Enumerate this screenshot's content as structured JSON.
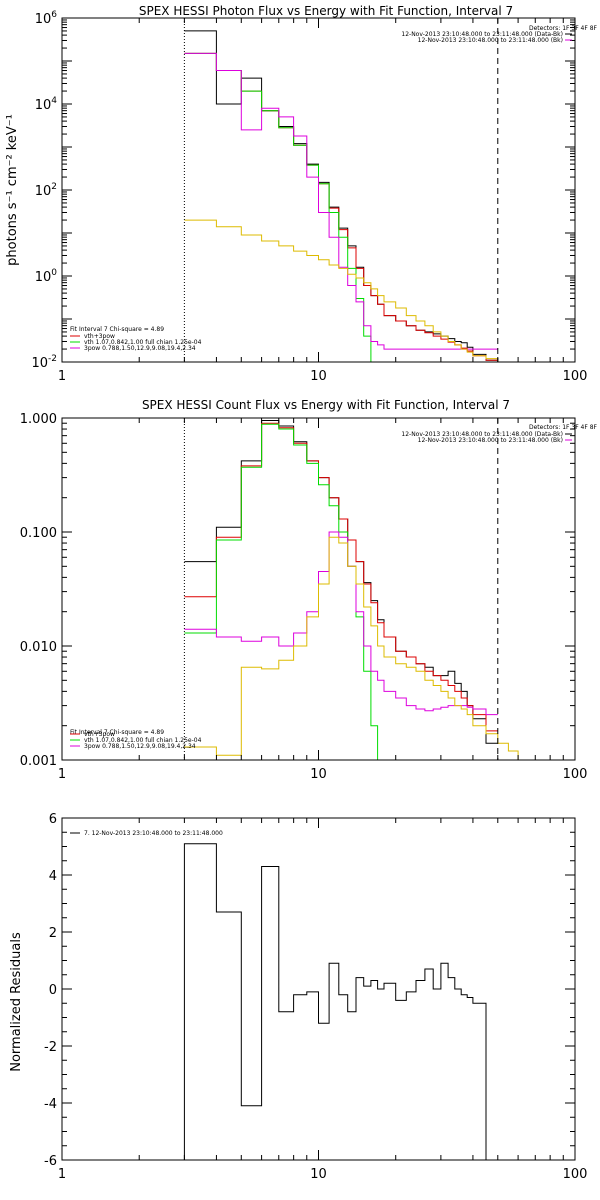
{
  "chart_data": [
    {
      "type": "line",
      "title": "SPEX HESSI Photon Flux vs Energy with Fit Function, Interval 7",
      "ylabel": "photons s⁻¹ cm⁻² keV⁻¹",
      "xlabel": "",
      "xscale": "log",
      "yscale": "log",
      "xlim": [
        1,
        100
      ],
      "ylim": [
        0.01,
        1000000
      ],
      "x_tick_labels": [
        "1",
        "10",
        "100"
      ],
      "y_tick_labels": [
        {
          "base": "10",
          "exp": "6",
          "value": 1000000
        },
        {
          "base": "10",
          "exp": "4",
          "value": 10000
        },
        {
          "base": "10",
          "exp": "2",
          "value": 100
        },
        {
          "base": "10",
          "exp": "0",
          "value": 1
        },
        {
          "base": "10",
          "exp": "-2",
          "value": 0.01
        }
      ],
      "bin_edges": [
        3,
        4,
        5,
        6,
        7,
        8,
        9,
        10,
        11,
        12,
        13,
        14,
        15,
        16,
        17,
        18,
        20,
        22,
        24,
        26,
        28,
        30,
        32,
        34,
        36,
        38,
        40,
        45,
        50,
        55,
        60
      ],
      "series": [
        {
          "name": "",
          "color": "#000000",
          "style": "solid",
          "values": [
            500000,
            10000,
            40000,
            7000,
            3000,
            1200,
            400,
            150,
            40,
            13,
            5,
            1.6,
            0.6,
            0.35,
            0.22,
            0.12,
            0.09,
            0.07,
            0.055,
            0.05,
            0.045,
            0.04,
            0.035,
            0.03,
            0.028,
            0.022,
            0.015,
            0.011,
            null,
            null
          ]
        },
        {
          "name": "vth+3pow",
          "color": "#dd0000",
          "style": "solid",
          "values": [
            150000,
            60000,
            20000,
            7000,
            2800,
            1100,
            380,
            140,
            38,
            12,
            4.5,
            1.5,
            0.6,
            0.35,
            0.22,
            0.12,
            0.09,
            0.07,
            0.055,
            0.048,
            0.04,
            0.034,
            0.029,
            0.025,
            0.021,
            0.018,
            0.014,
            0.011,
            null,
            null
          ]
        },
        {
          "name": "vth 1.07,0.842,1.00  full chian 1.25e-04",
          "color": "#00dd00",
          "style": "solid",
          "values": [
            150000,
            60000,
            20000,
            7000,
            2800,
            1100,
            380,
            140,
            30,
            8,
            1.5,
            0.3,
            0.04,
            0.01,
            null,
            null,
            null,
            null,
            null,
            null,
            null,
            null,
            null,
            null,
            null,
            null,
            null,
            null,
            null,
            null
          ]
        },
        {
          "name": "3pow 0.788,1.50,12.9,9.08,19.4,2.34",
          "color": "#dd00dd",
          "style": "solid",
          "values": [
            150000,
            60000,
            2500,
            8000,
            5000,
            1800,
            200,
            30,
            8,
            1.6,
            0.6,
            0.25,
            0.07,
            0.03,
            0.025,
            0.02,
            0.02,
            0.02,
            0.02,
            0.02,
            0.02,
            0.02,
            0.02,
            0.02,
            0.02,
            0.02,
            0.02,
            0.02,
            null,
            null
          ]
        },
        {
          "name": "",
          "color": "#ddbb00",
          "style": "solid",
          "values": [
            20,
            14,
            9,
            6.5,
            5,
            3.8,
            3,
            2.4,
            1.8,
            1.5,
            1.1,
            0.9,
            0.7,
            0.5,
            0.35,
            0.25,
            0.18,
            0.12,
            0.09,
            0.07,
            0.05,
            0.04,
            0.03,
            0.025,
            0.02,
            0.017,
            0.014,
            0.012,
            0.01,
            0.009
          ]
        }
      ],
      "vlines": [
        {
          "x": 3,
          "style": "dotted",
          "color": "#000000"
        },
        {
          "x": 50,
          "style": "dashed",
          "color": "#000000"
        }
      ],
      "legend_header": "Detectors: 1F 3F 4F 8F",
      "legend_top": [
        {
          "text": "12-Nov-2013 23:10:48.000 to 23:11:48.000 (Data-Bk)",
          "color": "#000000"
        },
        {
          "text": "12-Nov-2013 23:10:48.000 to 23:11:48.000 (Bk)",
          "color": "#dd00dd"
        }
      ],
      "legend_bottom_title": "Fit Interval  7   Chi-square = 4.89",
      "legend_bottom": [
        {
          "text": "vth+3pow",
          "color": "#dd0000"
        },
        {
          "text": "vth 1.07,0.842,1.00  full chian 1.25e-04",
          "color": "#00dd00"
        },
        {
          "text": "3pow 0.788,1.50,12.9,9.08,19.4,2.34",
          "color": "#dd00dd"
        }
      ]
    },
    {
      "type": "line",
      "title": "SPEX HESSI Count Flux vs Energy with Fit Function, Interval 7",
      "ylabel": "",
      "xlabel": "",
      "xscale": "log",
      "yscale": "log",
      "xlim": [
        1,
        100
      ],
      "ylim": [
        0.001,
        1.0
      ],
      "x_tick_labels": [
        "1",
        "10",
        "100"
      ],
      "y_tick_labels": [
        {
          "text": "1.000",
          "value": 1.0
        },
        {
          "text": "0.100",
          "value": 0.1
        },
        {
          "text": "0.010",
          "value": 0.01
        },
        {
          "text": "0.001",
          "value": 0.001
        }
      ],
      "bin_edges": [
        3,
        4,
        5,
        6,
        7,
        8,
        9,
        10,
        11,
        12,
        13,
        14,
        15,
        16,
        17,
        18,
        20,
        22,
        24,
        26,
        28,
        30,
        32,
        34,
        36,
        38,
        40,
        45,
        50,
        55,
        60,
        70,
        80
      ],
      "series": [
        {
          "name": "",
          "color": "#000000",
          "style": "solid",
          "values": [
            0.055,
            0.11,
            0.42,
            0.95,
            0.85,
            0.62,
            0.42,
            0.3,
            0.2,
            0.13,
            0.085,
            0.055,
            0.036,
            0.025,
            0.017,
            0.012,
            0.009,
            0.008,
            0.007,
            0.0065,
            0.0055,
            0.0055,
            0.006,
            0.0047,
            0.004,
            0.003,
            0.0023,
            0.0014,
            null,
            null,
            null,
            null
          ]
        },
        {
          "name": "vth+3pow",
          "color": "#dd0000",
          "style": "solid",
          "values": [
            0.027,
            0.09,
            0.38,
            0.9,
            0.82,
            0.6,
            0.42,
            0.3,
            0.2,
            0.13,
            0.085,
            0.055,
            0.035,
            0.024,
            0.016,
            0.012,
            0.009,
            0.008,
            0.007,
            0.006,
            0.0055,
            0.005,
            0.0045,
            0.004,
            0.0035,
            0.003,
            0.0025,
            0.0018,
            null,
            null,
            null,
            null
          ]
        },
        {
          "name": "vth 1.07,0.842,1.00  full chian 1.25e-04",
          "color": "#00dd00",
          "style": "solid",
          "values": [
            0.013,
            0.085,
            0.37,
            0.88,
            0.8,
            0.58,
            0.4,
            0.26,
            0.17,
            0.1,
            0.05,
            0.018,
            0.006,
            0.002,
            0.001,
            null,
            null,
            null,
            null,
            null,
            null,
            null,
            null,
            null,
            null,
            null,
            null,
            null,
            null,
            null,
            null,
            null
          ]
        },
        {
          "name": "3pow 0.788,1.50,12.9,9.08,19.4,2.34",
          "color": "#dd00dd",
          "style": "solid",
          "values": [
            0.014,
            0.012,
            0.011,
            0.012,
            0.01,
            0.013,
            0.02,
            0.045,
            0.1,
            0.09,
            0.05,
            0.02,
            0.01,
            0.006,
            0.005,
            0.004,
            0.0035,
            0.003,
            0.0028,
            0.0027,
            0.0028,
            0.0029,
            0.003,
            0.003,
            0.003,
            0.0029,
            0.0028,
            0.0025,
            null,
            null,
            null,
            null
          ]
        },
        {
          "name": "",
          "color": "#ddbb00",
          "style": "solid",
          "values": [
            0.0013,
            0.0011,
            0.0065,
            0.0063,
            0.0075,
            0.01,
            0.018,
            0.035,
            0.09,
            0.08,
            0.05,
            0.035,
            0.022,
            0.015,
            0.01,
            0.008,
            0.007,
            0.0065,
            0.006,
            0.005,
            0.0045,
            0.004,
            0.0035,
            0.003,
            0.0028,
            0.0025,
            0.002,
            0.0017,
            0.0014,
            0.0012,
            0.001,
            0.001
          ]
        }
      ],
      "vlines": [
        {
          "x": 3,
          "style": "dotted",
          "color": "#000000"
        },
        {
          "x": 50,
          "style": "dashed",
          "color": "#000000"
        }
      ],
      "legend_header": "Detectors: 1F 3F 4F 8F",
      "legend_top": [
        {
          "text": "12-Nov-2013 23:10:48.000 to 23:11:48.000 (Data-Bk)",
          "color": "#000000"
        },
        {
          "text": "12-Nov-2013 23:10:48.000 to 23:11:48.000 (Bk)",
          "color": "#dd00dd"
        }
      ],
      "legend_bottom_title": "Fit Interval  7   Chi-square = 4.89",
      "legend_bottom": [
        {
          "text": "vth+3pow",
          "color": "#dd0000"
        },
        {
          "text": "vth 1.07,0.842,1.00  full chian 1.25e-04",
          "color": "#00dd00"
        },
        {
          "text": "3pow 0.788,1.50,12.9,9.08,19.4,2.34",
          "color": "#dd00dd"
        }
      ]
    },
    {
      "type": "line",
      "title": "",
      "ylabel": "Normalized Residuals",
      "xlabel": "",
      "xscale": "log",
      "yscale": "linear",
      "xlim": [
        1,
        100
      ],
      "ylim": [
        -6,
        6
      ],
      "x_tick_labels": [
        "1",
        "10",
        "100"
      ],
      "y_tick_labels": [
        {
          "text": "6",
          "value": 6
        },
        {
          "text": "4",
          "value": 4
        },
        {
          "text": "2",
          "value": 2
        },
        {
          "text": "0",
          "value": 0
        },
        {
          "text": "-2",
          "value": -2
        },
        {
          "text": "-4",
          "value": -4
        },
        {
          "text": "-6",
          "value": -6
        }
      ],
      "bin_edges": [
        3,
        4,
        5,
        6,
        7,
        8,
        9,
        10,
        11,
        12,
        13,
        14,
        15,
        16,
        17,
        18,
        20,
        22,
        24,
        26,
        28,
        30,
        32,
        34,
        36,
        38,
        40,
        45,
        50
      ],
      "series": [
        {
          "name": "7. 12-Nov-2013 23:10:48.000 to 23:11:48.000",
          "color": "#000000",
          "style": "solid",
          "values": [
            5.1,
            2.7,
            -4.1,
            4.3,
            -0.8,
            -0.2,
            -0.1,
            -1.2,
            0.9,
            -0.2,
            -0.8,
            0.4,
            0.1,
            0.3,
            0.0,
            0.2,
            -0.4,
            -0.1,
            0.3,
            0.7,
            0.0,
            0.9,
            0.4,
            0.0,
            -0.2,
            -0.3,
            -0.5
          ],
          "drop_to": -6
        }
      ],
      "legend_entry": "7. 12-Nov-2013 23:10:48.000 to 23:11:48.000"
    }
  ]
}
